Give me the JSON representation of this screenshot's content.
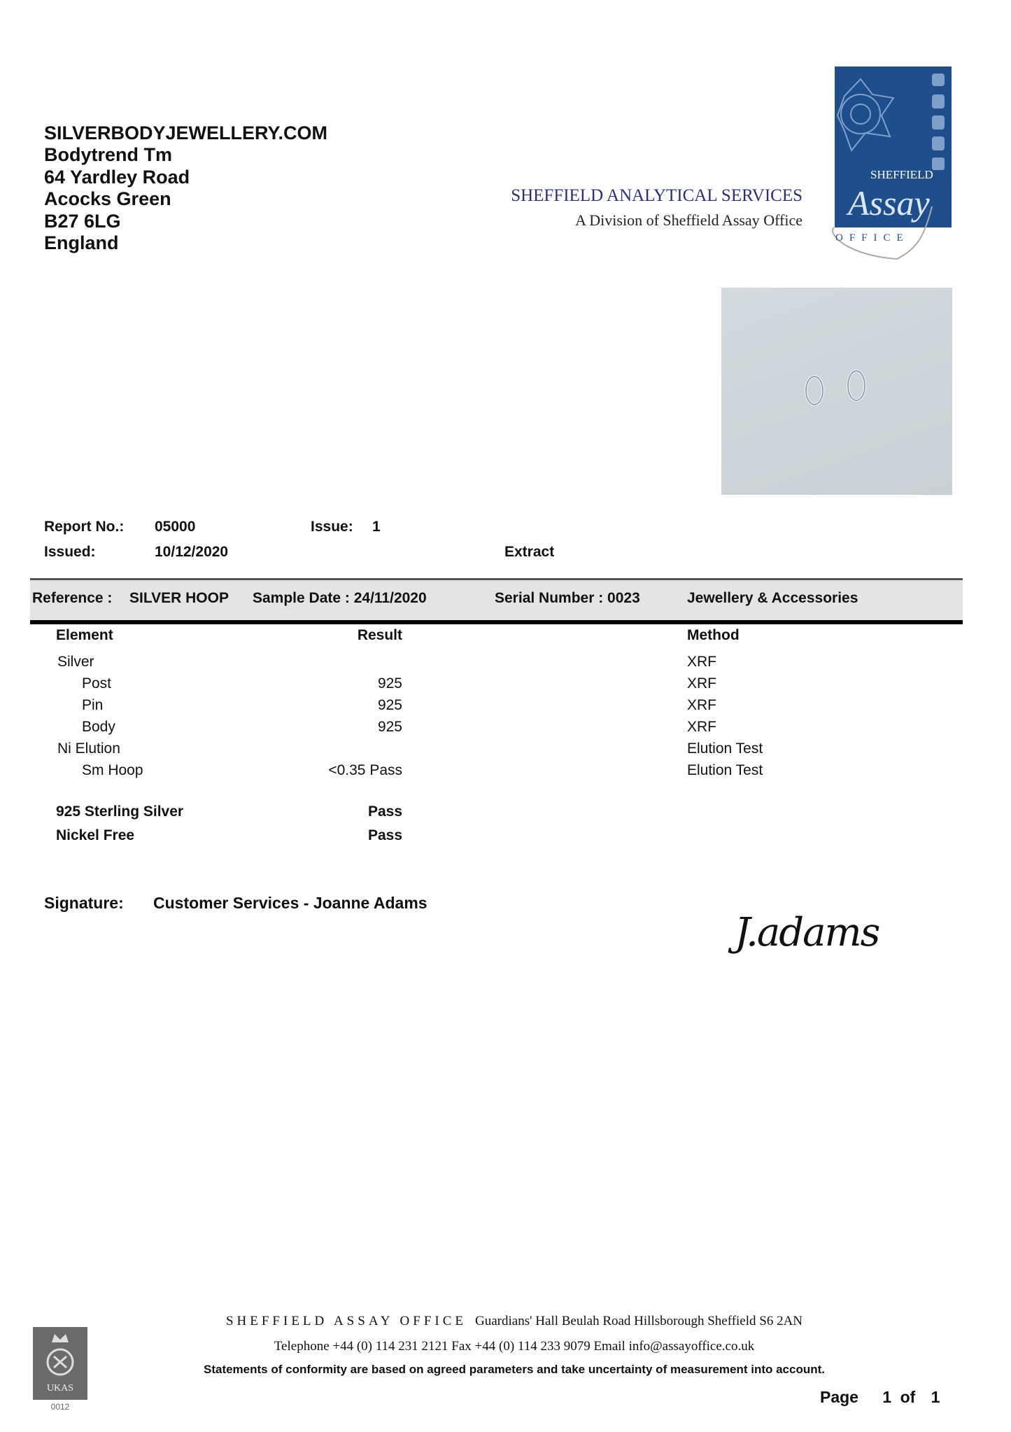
{
  "recipient": {
    "lines": [
      "SILVERBODYJEWELLERY.COM",
      "Bodytrend Tm",
      "64 Yardley Road",
      "Acocks Green",
      "B27 6LG",
      "England"
    ]
  },
  "header": {
    "org_name": "SHEFFIELD ANALYTICAL SERVICES",
    "org_sub": "A Division of Sheffield Assay Office",
    "logo_text": {
      "top": "SHEFFIELD",
      "main": "Assay",
      "bottom": "OFFICE"
    },
    "brand_color": "#1f4e8c"
  },
  "report": {
    "report_no_label": "Report No.:",
    "report_no": "05000",
    "issue_label": "Issue:",
    "issue": "1",
    "issued_label": "Issued:",
    "issued": "10/12/2020",
    "type": "Extract"
  },
  "band": {
    "reference_label": "Reference :",
    "reference": "SILVER HOOP",
    "sample_date": "Sample Date : 24/11/2020",
    "serial": "Serial Number : 0023",
    "category": "Jewellery & Accessories"
  },
  "results": {
    "headers": {
      "element": "Element",
      "result": "Result",
      "method": "Method"
    },
    "rows": [
      {
        "element": "Silver",
        "result": "",
        "method": "XRF",
        "indent": false
      },
      {
        "element": "Post",
        "result": "925",
        "method": "XRF",
        "indent": true
      },
      {
        "element": "Pin",
        "result": "925",
        "method": "XRF",
        "indent": true
      },
      {
        "element": "Body",
        "result": "925",
        "method": "XRF",
        "indent": true
      },
      {
        "element": "Ni Elution",
        "result": "",
        "method": "Elution Test",
        "indent": false
      },
      {
        "element": "Sm Hoop",
        "result": "<0.35 Pass",
        "method": "Elution Test",
        "indent": true
      }
    ],
    "summary": [
      {
        "label": "925 Sterling Silver",
        "result": "Pass"
      },
      {
        "label": "Nickel Free",
        "result": "Pass"
      }
    ]
  },
  "signature": {
    "label": "Signature:",
    "value": "Customer Services - Joanne Adams",
    "handwritten": "J.adams"
  },
  "footer": {
    "office": "SHEFFIELD ASSAY OFFICE",
    "address": "Guardians' Hall  Beulah Road  Hillsborough Sheffield  S6 2AN",
    "contact": "Telephone  +44  (0) 114 231 2121   Fax  +44  (0) 114  233  9079   Email  info@assayoffice.co.uk",
    "statement": "Statements of conformity are based on agreed parameters and take uncertainty of measurement into account.",
    "page_label": "Page",
    "page": "1",
    "of_label": "of",
    "pages": "1",
    "ukas_text": "UKAS",
    "ukas_number": "0012"
  }
}
